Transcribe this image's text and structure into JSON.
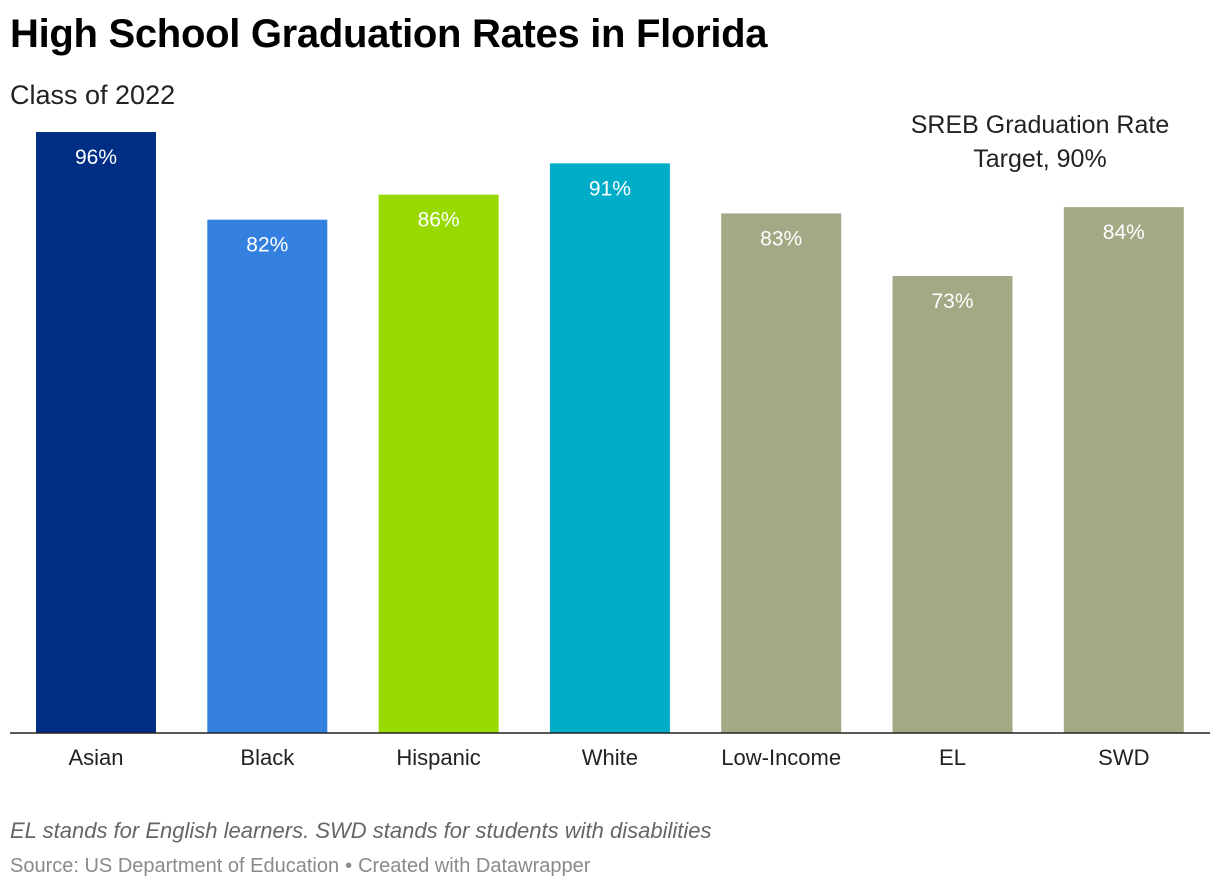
{
  "title": "High School Graduation Rates in Florida",
  "subtitle": "Class of 2022",
  "note": "EL stands for English learners. SWD stands for students with disabilities",
  "source": {
    "text": "Source: US Department of Education",
    "separator": "•",
    "credit": "Created with Datawrapper"
  },
  "chart_data": {
    "type": "bar",
    "categories": [
      "Asian",
      "Black",
      "Hispanic",
      "White",
      "Low-Income",
      "EL",
      "SWD"
    ],
    "values": [
      96,
      82,
      86,
      91,
      83,
      73,
      84
    ],
    "value_labels": [
      "96%",
      "82%",
      "86%",
      "91%",
      "83%",
      "73%",
      "84%"
    ],
    "colors": [
      "#002e85",
      "#3480e0",
      "#98d900",
      "#00adc8",
      "#a3a985",
      "#a3a985",
      "#a3a985"
    ],
    "ylim": [
      0,
      100
    ],
    "grid": false,
    "reference_line": {
      "value": 90,
      "label_lines": [
        "SREB Graduation Rate",
        "Target, 90%"
      ]
    }
  }
}
